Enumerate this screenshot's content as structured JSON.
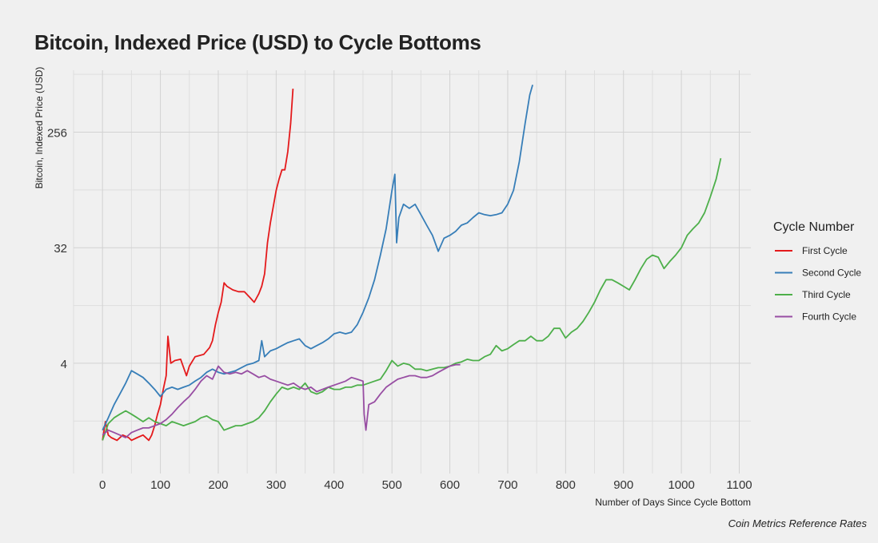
{
  "title": "Bitcoin, Indexed Price (USD) to Cycle Bottoms",
  "caption": "Coin Metrics Reference Rates",
  "chart_data": {
    "type": "line",
    "title": "Bitcoin, Indexed Price (USD) to Cycle Bottoms",
    "xlabel": "Number of Days Since Cycle Bottom",
    "ylabel": "Bitcoin, Indexed Price (USD)",
    "xlim": [
      -50,
      1120
    ],
    "ylim": [
      0.55,
      780
    ],
    "yscale": "log2",
    "x_ticks": [
      0,
      100,
      200,
      300,
      400,
      500,
      600,
      700,
      800,
      900,
      1000,
      1100
    ],
    "y_ticks": [
      4,
      32,
      256
    ],
    "grid": true,
    "legend": {
      "title": "Cycle Number",
      "position": "right"
    },
    "series": [
      {
        "name": "First Cycle",
        "color": "#e41a1c",
        "x": [
          0,
          5,
          10,
          15,
          25,
          35,
          45,
          50,
          60,
          70,
          80,
          85,
          90,
          95,
          100,
          105,
          110,
          113,
          118,
          125,
          135,
          145,
          150,
          160,
          175,
          185,
          190,
          195,
          200,
          205,
          210,
          215,
          225,
          235,
          245,
          255,
          262,
          270,
          275,
          280,
          285,
          290,
          300,
          305,
          310,
          315,
          320,
          325,
          329
        ],
        "y": [
          1.0,
          1.4,
          1.1,
          1.05,
          1.0,
          1.1,
          1.05,
          1.0,
          1.05,
          1.1,
          1.0,
          1.1,
          1.3,
          1.6,
          1.9,
          2.5,
          3.2,
          6.5,
          4.0,
          4.2,
          4.3,
          3.2,
          3.8,
          4.5,
          4.7,
          5.3,
          6.0,
          8.0,
          10.0,
          12.0,
          17.0,
          16.0,
          15.0,
          14.5,
          14.5,
          13.0,
          12.0,
          14.0,
          16.0,
          20.0,
          35.0,
          50.0,
          90.0,
          110.0,
          130.0,
          130.0,
          180.0,
          300.0,
          560.0
        ]
      },
      {
        "name": "Second Cycle",
        "color": "#377eb8",
        "x": [
          0,
          10,
          20,
          30,
          40,
          50,
          60,
          70,
          80,
          90,
          100,
          110,
          120,
          130,
          140,
          150,
          160,
          170,
          180,
          190,
          200,
          210,
          220,
          230,
          240,
          250,
          260,
          270,
          275,
          280,
          290,
          300,
          310,
          320,
          330,
          340,
          350,
          360,
          370,
          380,
          390,
          400,
          410,
          420,
          430,
          440,
          450,
          460,
          470,
          480,
          490,
          500,
          505,
          508,
          512,
          520,
          530,
          540,
          550,
          560,
          570,
          580,
          590,
          600,
          610,
          620,
          630,
          640,
          650,
          660,
          670,
          680,
          690,
          700,
          710,
          720,
          730,
          738,
          743
        ],
        "y": [
          1.2,
          1.5,
          1.9,
          2.3,
          2.8,
          3.5,
          3.3,
          3.1,
          2.8,
          2.5,
          2.2,
          2.5,
          2.6,
          2.5,
          2.6,
          2.7,
          2.9,
          3.1,
          3.4,
          3.6,
          3.4,
          3.3,
          3.4,
          3.5,
          3.7,
          3.9,
          4.0,
          4.2,
          6.0,
          4.5,
          5.0,
          5.2,
          5.5,
          5.8,
          6.0,
          6.2,
          5.5,
          5.2,
          5.5,
          5.8,
          6.2,
          6.8,
          7.0,
          6.8,
          7.0,
          8.0,
          10.0,
          13.0,
          18.0,
          28.0,
          45.0,
          90.0,
          120.0,
          35.0,
          55.0,
          70.0,
          65.0,
          70.0,
          58.0,
          48.0,
          40.0,
          30.0,
          38.0,
          40.0,
          43.0,
          48.0,
          50.0,
          55.0,
          60.0,
          58.0,
          57.0,
          58.0,
          60.0,
          70.0,
          90.0,
          150.0,
          300.0,
          500.0,
          600.0
        ]
      },
      {
        "name": "Third Cycle",
        "color": "#4daf4a",
        "x": [
          0,
          10,
          20,
          30,
          40,
          50,
          60,
          70,
          80,
          90,
          100,
          110,
          120,
          130,
          140,
          150,
          160,
          170,
          180,
          190,
          200,
          210,
          220,
          230,
          240,
          250,
          260,
          270,
          280,
          290,
          300,
          310,
          320,
          330,
          340,
          350,
          360,
          370,
          380,
          390,
          400,
          410,
          420,
          430,
          440,
          450,
          460,
          470,
          480,
          490,
          500,
          510,
          520,
          530,
          540,
          550,
          560,
          570,
          580,
          590,
          600,
          610,
          620,
          630,
          640,
          650,
          660,
          670,
          680,
          690,
          700,
          710,
          720,
          730,
          740,
          750,
          760,
          770,
          780,
          790,
          800,
          810,
          820,
          830,
          840,
          850,
          860,
          870,
          880,
          890,
          900,
          910,
          920,
          930,
          940,
          950,
          960,
          970,
          980,
          990,
          1000,
          1010,
          1020,
          1030,
          1040,
          1050,
          1060,
          1068
        ],
        "y": [
          1.0,
          1.35,
          1.5,
          1.6,
          1.7,
          1.6,
          1.5,
          1.4,
          1.5,
          1.4,
          1.35,
          1.3,
          1.4,
          1.35,
          1.3,
          1.35,
          1.4,
          1.5,
          1.55,
          1.45,
          1.4,
          1.2,
          1.25,
          1.3,
          1.3,
          1.35,
          1.4,
          1.5,
          1.7,
          2.0,
          2.3,
          2.6,
          2.5,
          2.6,
          2.5,
          2.8,
          2.4,
          2.3,
          2.4,
          2.6,
          2.5,
          2.5,
          2.6,
          2.6,
          2.7,
          2.7,
          2.8,
          2.9,
          3.0,
          3.5,
          4.2,
          3.8,
          4.0,
          3.9,
          3.6,
          3.6,
          3.5,
          3.6,
          3.7,
          3.7,
          3.8,
          4.0,
          4.1,
          4.3,
          4.2,
          4.2,
          4.5,
          4.7,
          5.5,
          5.0,
          5.2,
          5.6,
          6.0,
          6.0,
          6.5,
          6.0,
          6.0,
          6.5,
          7.5,
          7.5,
          6.3,
          7.0,
          7.5,
          8.5,
          10.0,
          12.0,
          15.0,
          18.0,
          18.0,
          17.0,
          16.0,
          15.0,
          18.0,
          22.0,
          26.0,
          28.0,
          27.0,
          22.0,
          25.0,
          28.0,
          32.0,
          40.0,
          45.0,
          50.0,
          60.0,
          80.0,
          110.0,
          160.0
        ]
      },
      {
        "name": "Fourth Cycle",
        "color": "#984ea3",
        "x": [
          0,
          10,
          20,
          30,
          40,
          50,
          60,
          70,
          80,
          90,
          100,
          110,
          120,
          130,
          140,
          150,
          160,
          170,
          180,
          190,
          200,
          210,
          220,
          230,
          240,
          250,
          260,
          270,
          280,
          290,
          300,
          310,
          320,
          330,
          340,
          350,
          360,
          370,
          380,
          390,
          400,
          410,
          420,
          430,
          440,
          450,
          452,
          455,
          460,
          470,
          480,
          490,
          500,
          510,
          520,
          530,
          540,
          550,
          560,
          570,
          580,
          590,
          600,
          610,
          618
        ],
        "y": [
          1.1,
          1.2,
          1.15,
          1.1,
          1.05,
          1.15,
          1.2,
          1.25,
          1.25,
          1.3,
          1.35,
          1.45,
          1.6,
          1.8,
          2.0,
          2.2,
          2.5,
          2.9,
          3.2,
          3.0,
          3.8,
          3.4,
          3.3,
          3.4,
          3.3,
          3.5,
          3.3,
          3.1,
          3.2,
          3.0,
          2.9,
          2.8,
          2.7,
          2.8,
          2.6,
          2.5,
          2.6,
          2.4,
          2.5,
          2.6,
          2.7,
          2.8,
          2.9,
          3.1,
          3.0,
          2.9,
          1.6,
          1.2,
          1.9,
          2.0,
          2.3,
          2.6,
          2.8,
          3.0,
          3.1,
          3.2,
          3.2,
          3.1,
          3.1,
          3.2,
          3.4,
          3.6,
          3.8,
          3.9,
          3.9
        ]
      }
    ]
  }
}
